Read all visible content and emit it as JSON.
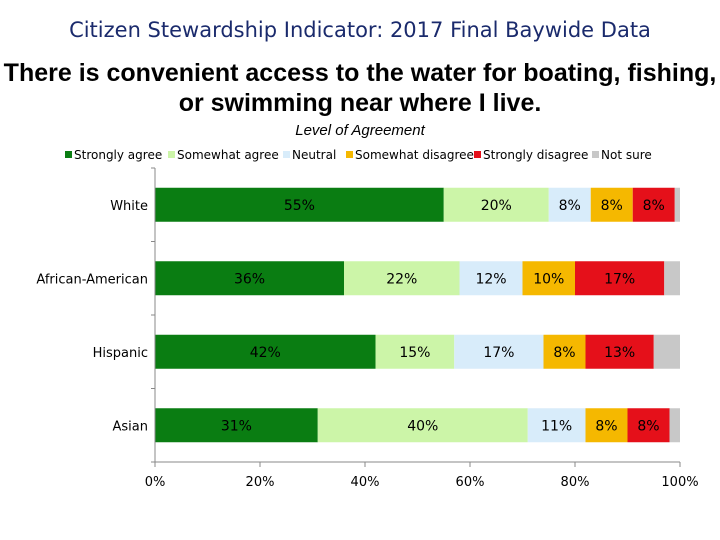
{
  "title": "Citizen Stewardship Indicator: 2017 Final Baywide Data",
  "chart_data": {
    "type": "bar",
    "orientation": "horizontal",
    "stacked": "percent",
    "title": "There is convenient access to the water for boating, fishing, or swimming near where I live.",
    "legend_title": "Level of Agreement",
    "legend_position": "top",
    "categories": [
      "White",
      "African-American",
      "Hispanic",
      "Asian"
    ],
    "series": [
      {
        "name": "Strongly agree",
        "color": "#0a7d12",
        "values": [
          55,
          36,
          42,
          31
        ],
        "labels": [
          "55%",
          "36%",
          "42%",
          "31%"
        ]
      },
      {
        "name": "Somewhat agree",
        "color": "#ccf5a8",
        "values": [
          20,
          22,
          15,
          40
        ],
        "labels": [
          "20%",
          "22%",
          "15%",
          "40%"
        ]
      },
      {
        "name": "Neutral",
        "color": "#d8ecfa",
        "values": [
          8,
          12,
          17,
          11
        ],
        "labels": [
          "8%",
          "12%",
          "17%",
          "11%"
        ]
      },
      {
        "name": "Somewhat disagree",
        "color": "#f5b800",
        "values": [
          8,
          10,
          8,
          8
        ],
        "labels": [
          "8%",
          "10%",
          "8%",
          "8%"
        ]
      },
      {
        "name": "Strongly disagree",
        "color": "#e5101a",
        "values": [
          8,
          17,
          13,
          8
        ],
        "labels": [
          "8%",
          "17%",
          "13%",
          "8%"
        ]
      },
      {
        "name": "Not sure",
        "color": "#c8c8c8",
        "values": [
          1,
          3,
          5,
          2
        ],
        "labels": [
          "",
          "",
          "",
          ""
        ]
      }
    ],
    "x_ticks": [
      "0%",
      "20%",
      "40%",
      "60%",
      "80%",
      "100%"
    ],
    "xlim": [
      0,
      100
    ],
    "grid": false
  }
}
